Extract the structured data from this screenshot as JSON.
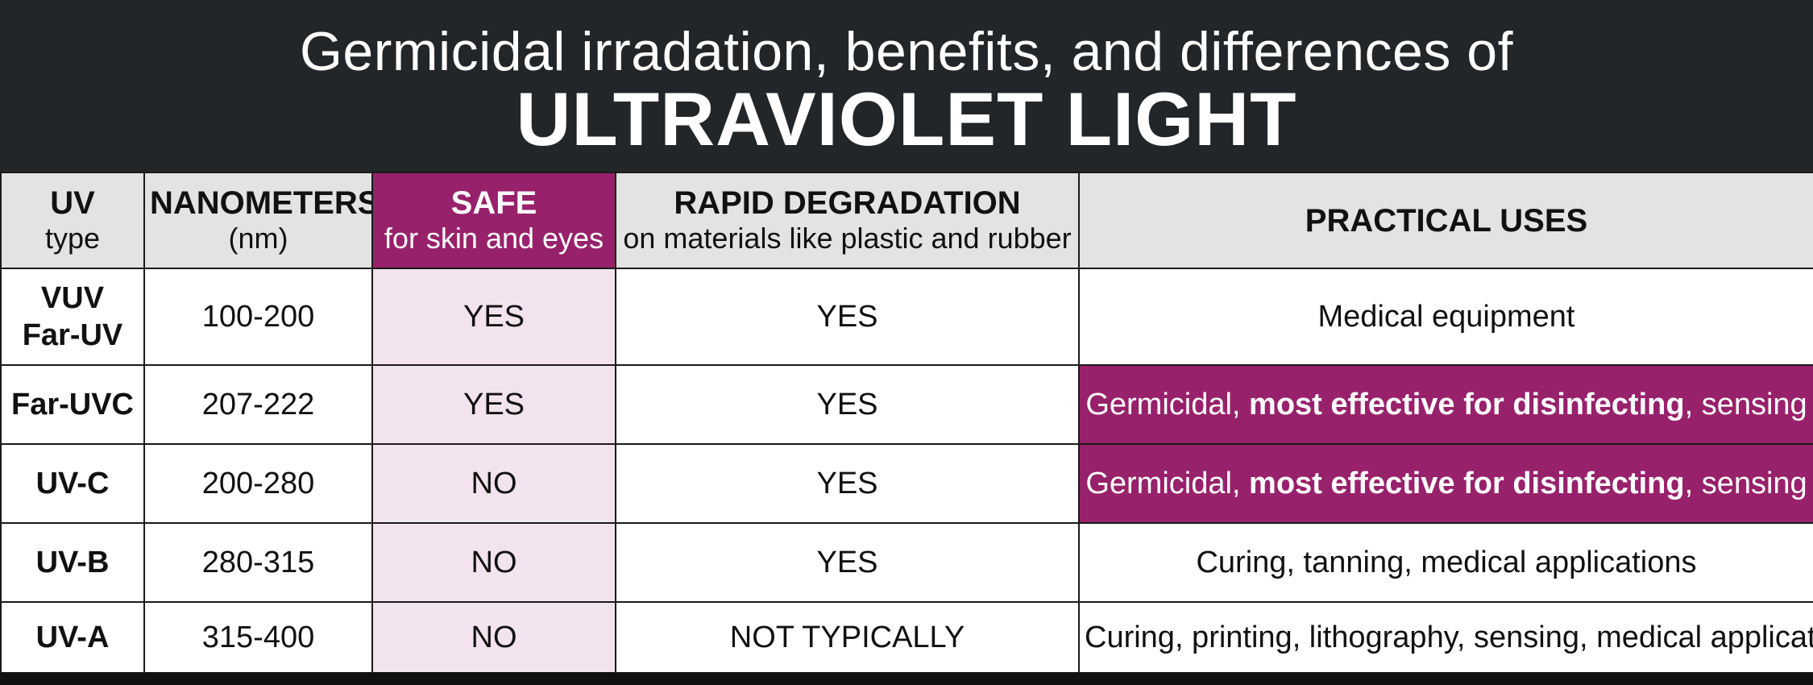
{
  "header": {
    "subtitle": "Germicidal irradation, benefits, and differences of",
    "title": "ULTRAVIOLET LIGHT"
  },
  "table": {
    "columns": [
      {
        "label": "UV",
        "sublabel": "type"
      },
      {
        "label": "NANOMETERS",
        "sublabel": "(nm)"
      },
      {
        "label": "SAFE",
        "sublabel": "for skin and eyes"
      },
      {
        "label": "RAPID DEGRADATION",
        "sublabel": "on materials like plastic and rubber"
      },
      {
        "label": "PRACTICAL USES",
        "sublabel": ""
      }
    ],
    "rows": [
      {
        "type_line1": "VUV",
        "type_line2": "Far-UV",
        "nm": "100-200",
        "safe": "YES",
        "degradation": "YES",
        "uses_pre": "Medical equipment",
        "uses_bold": "",
        "uses_post": "",
        "highlight": false
      },
      {
        "type_line1": "Far-UVC",
        "type_line2": "",
        "nm": "207-222",
        "safe": "YES",
        "degradation": "YES",
        "uses_pre": "Germicidal, ",
        "uses_bold": "most effective for disinfecting",
        "uses_post": ", sensing",
        "highlight": true
      },
      {
        "type_line1": "UV-C",
        "type_line2": "",
        "nm": "200-280",
        "safe": "NO",
        "degradation": "YES",
        "uses_pre": "Germicidal, ",
        "uses_bold": "most effective for disinfecting",
        "uses_post": ", sensing",
        "highlight": true
      },
      {
        "type_line1": "UV-B",
        "type_line2": "",
        "nm": "280-315",
        "safe": "NO",
        "degradation": "YES",
        "uses_pre": "Curing, tanning, medical applications",
        "uses_bold": "",
        "uses_post": "",
        "highlight": false
      },
      {
        "type_line1": "UV-A",
        "type_line2": "",
        "nm": "315-400",
        "safe": "NO",
        "degradation": "NOT TYPICALLY",
        "uses_pre": "Curing, printing, lithography, sensing, medical applications",
        "uses_bold": "",
        "uses_post": "",
        "highlight": false
      }
    ]
  },
  "colors": {
    "banner_bg": "#222629",
    "accent": "#98216b",
    "safe_tint": "#f3e3ee",
    "header_gray": "#e3e3e1"
  }
}
